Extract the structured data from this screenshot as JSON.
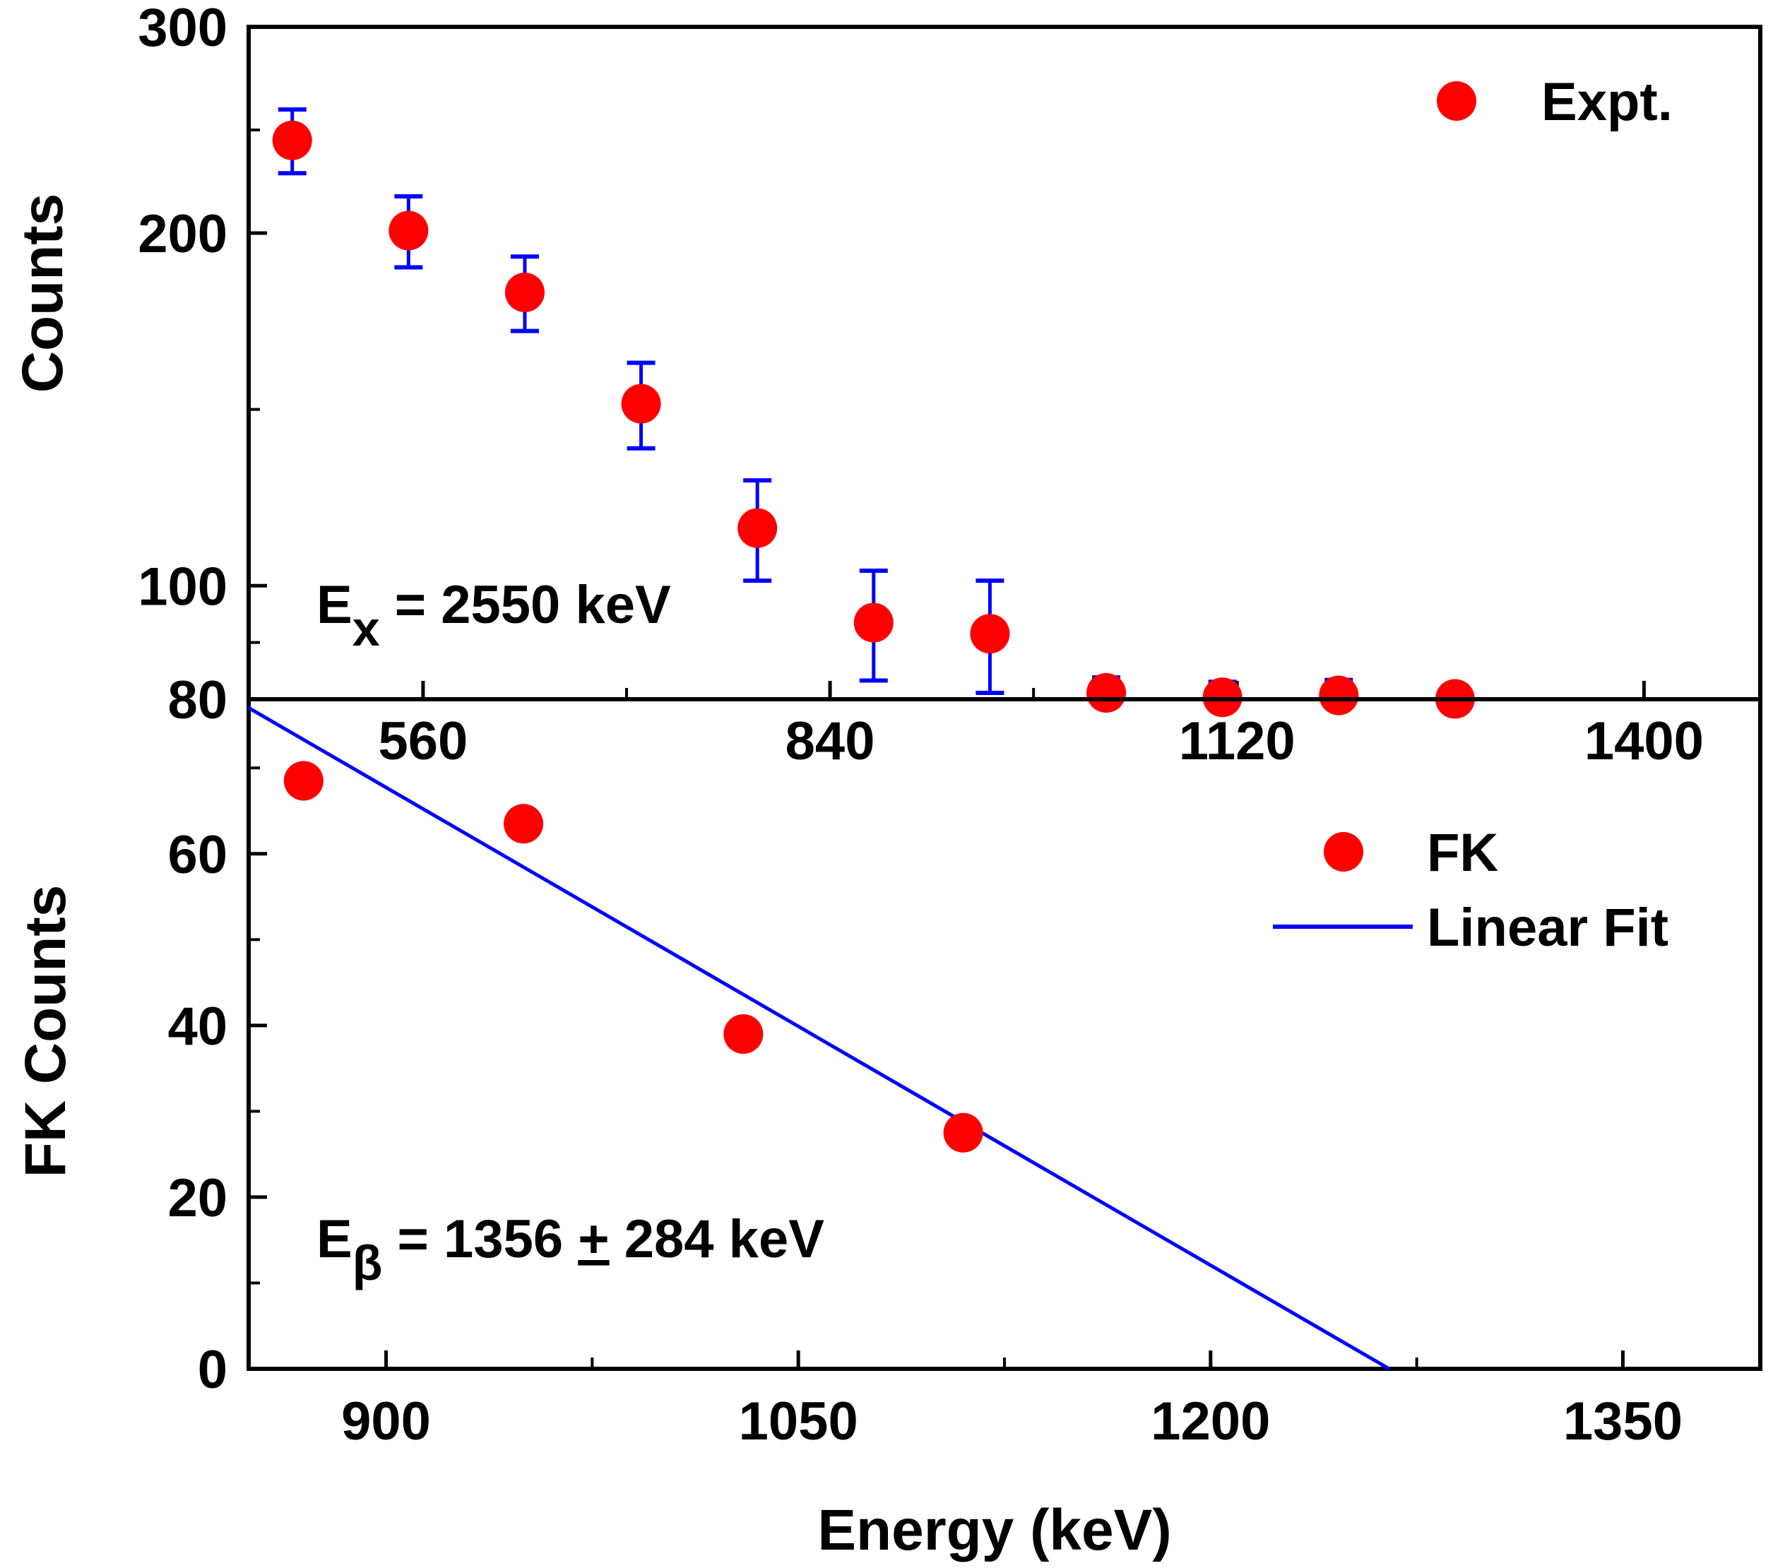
{
  "chart_data": [
    {
      "id": "top-panel",
      "type": "scatter",
      "title": "",
      "xlabel": "",
      "ylabel": "Counts",
      "y_scale": "log",
      "xlim": [
        440,
        1480
      ],
      "ylim": [
        80,
        300
      ],
      "x_ticks": [
        560,
        840,
        1120,
        1400
      ],
      "y_ticks": [
        80,
        100,
        200,
        300
      ],
      "series": [
        {
          "name": "Expt.",
          "color": "#ff0000",
          "errorbar_color": "#0000ff",
          "x": [
            470,
            550,
            630,
            710,
            790,
            870,
            950,
            1030,
            1110,
            1190,
            1270
          ],
          "y": [
            240,
            201,
            178,
            143,
            112,
            93,
            91,
            81,
            80.3,
            80.6,
            80.05
          ],
          "yerr": [
            15,
            14,
            13,
            12,
            11,
            10,
            10,
            2.5,
            2.5,
            2.5,
            2
          ]
        }
      ],
      "annotations": [
        {
          "base": "E",
          "sub": "x",
          "text": " = 2550 keV"
        }
      ],
      "legend": {
        "position": "top-right",
        "entries": [
          "Expt."
        ]
      }
    },
    {
      "id": "bottom-panel",
      "type": "scatter",
      "title": "",
      "xlabel": "Energy (keV)",
      "ylabel": "FK Counts",
      "xlim": [
        850,
        1400
      ],
      "ylim": [
        0,
        78
      ],
      "x_ticks": [
        900,
        1050,
        1200,
        1350
      ],
      "y_ticks": [
        0,
        20,
        40,
        60
      ],
      "series": [
        {
          "name": "FK",
          "color": "#ff0000",
          "x": [
            870,
            950,
            1030,
            1110
          ],
          "y": [
            68.5,
            63.5,
            39,
            27.5
          ]
        },
        {
          "name": "Linear Fit",
          "type": "line",
          "color": "#0000ff",
          "x": [
            850,
            1265
          ],
          "y": [
            77,
            0
          ]
        }
      ],
      "annotations": [
        {
          "base": "E",
          "sub": "β",
          "text": " = 1356 ",
          "pm": "+",
          "rest": " 284 keV"
        }
      ],
      "legend": {
        "position": "right",
        "entries": [
          "FK",
          "Linear Fit"
        ]
      }
    }
  ]
}
